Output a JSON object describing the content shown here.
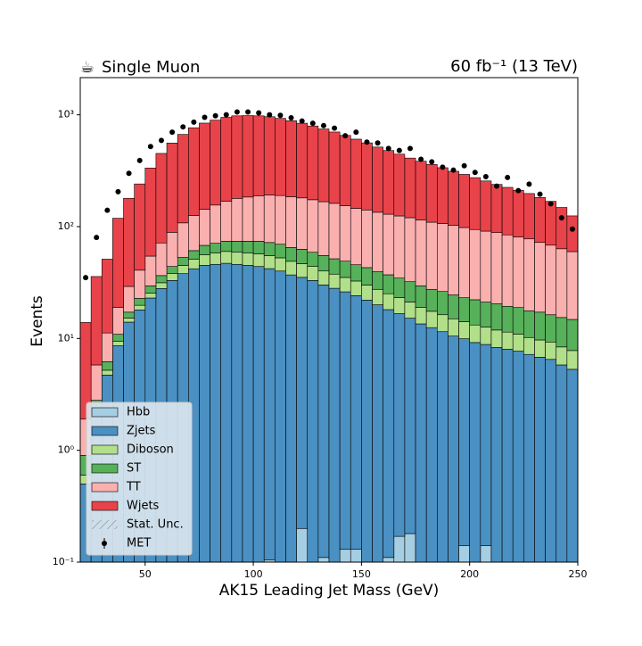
{
  "chart_data": {
    "type": "stacked-histogram",
    "title": "Single Muon",
    "subtitle": "60 fb⁻¹ (13 TeV)",
    "x_label": "AK15 Leading Jet Mass (GeV)",
    "y_label": "Events",
    "log_y": true,
    "xlim": [
      20,
      250
    ],
    "ylim": [
      0.1,
      2150
    ],
    "xticks": [
      50,
      100,
      150,
      200,
      250
    ],
    "yticks": [
      {
        "value": 0.1,
        "label": "10⁻¹"
      },
      {
        "value": 1,
        "label": "10⁰"
      },
      {
        "value": 10,
        "label": "10¹"
      },
      {
        "value": 100,
        "label": "10²"
      },
      {
        "value": 1000,
        "label": "10³"
      }
    ],
    "bins": [
      20,
      25,
      30,
      35,
      40,
      45,
      50,
      55,
      60,
      65,
      70,
      75,
      80,
      85,
      90,
      95,
      100,
      105,
      110,
      115,
      120,
      125,
      130,
      135,
      140,
      145,
      150,
      155,
      160,
      165,
      170,
      175,
      180,
      185,
      190,
      195,
      200,
      205,
      210,
      215,
      220,
      225,
      230,
      235,
      240,
      245,
      250
    ],
    "legend_position": "lower left",
    "uncertainty_label": "Stat. Unc.",
    "series": [
      {
        "name": "Hbb",
        "color": "#a6cee3",
        "values": [
          0,
          0,
          0,
          0,
          0,
          0,
          0,
          0,
          0,
          0,
          0,
          0,
          0,
          0,
          0,
          0,
          0,
          0.105,
          0.1,
          0,
          0.2,
          0,
          0.11,
          0.1,
          0.13,
          0.13,
          0,
          0,
          0.11,
          0.17,
          0.18,
          0,
          0,
          0,
          0,
          0.14,
          0,
          0.14,
          0,
          0,
          0,
          0,
          0,
          0,
          0,
          0
        ]
      },
      {
        "name": "Zjets",
        "color": "#4a90c2",
        "values": [
          0.5,
          2,
          4.7,
          8.6,
          14,
          18,
          23,
          28,
          33,
          38,
          42,
          45,
          46,
          47,
          46,
          45,
          44,
          42,
          40,
          37,
          35,
          33,
          30,
          28,
          26,
          24,
          22,
          20,
          18,
          16.5,
          15,
          13.5,
          12.5,
          11.5,
          10.5,
          9.8,
          9.2,
          8.7,
          8.3,
          8,
          7.7,
          7.2,
          6.8,
          6.5,
          5.8,
          5.3
        ]
      },
      {
        "name": "Diboson",
        "color": "#b2df8a",
        "values": [
          0.1,
          0.2,
          0.5,
          0.8,
          1.2,
          1.8,
          2.5,
          3.5,
          5,
          7,
          9,
          11,
          12,
          13,
          13,
          13,
          13,
          13,
          12.5,
          12,
          11.5,
          11,
          10,
          9.5,
          9,
          8.5,
          8,
          7.5,
          7,
          6.5,
          6,
          5.5,
          5,
          4.8,
          4.5,
          4.2,
          4,
          3.8,
          3.6,
          3.4,
          3.2,
          3,
          2.9,
          2.8,
          2.6,
          2.5
        ]
      },
      {
        "name": "ST",
        "color": "#57b05a",
        "values": [
          0.3,
          0.6,
          1,
          1.5,
          2,
          3,
          4,
          5,
          6,
          8,
          10,
          12,
          13,
          14,
          15,
          16,
          17,
          17,
          17,
          16,
          16,
          15,
          15,
          14,
          14,
          13,
          13,
          12,
          12,
          11.5,
          11,
          10.5,
          10,
          10,
          9.5,
          9,
          9,
          8.5,
          8.5,
          8,
          8,
          7.5,
          7.5,
          7,
          7,
          7
        ]
      },
      {
        "name": "TT",
        "color": "#fbb0b0",
        "values": [
          1,
          3,
          5,
          8,
          12,
          18,
          25,
          35,
          45,
          55,
          65,
          75,
          85,
          95,
          105,
          110,
          115,
          120,
          120,
          120,
          118,
          115,
          112,
          110,
          105,
          100,
          98,
          95,
          92,
          90,
          88,
          85,
          82,
          80,
          78,
          75,
          72,
          70,
          68,
          65,
          62,
          60,
          55,
          52,
          48,
          45
        ]
      },
      {
        "name": "Wjets",
        "color": "#e8434a",
        "values": [
          12,
          30,
          40,
          100,
          150,
          200,
          280,
          380,
          470,
          560,
          640,
          700,
          740,
          780,
          800,
          800,
          790,
          770,
          740,
          700,
          660,
          620,
          580,
          540,
          500,
          460,
          420,
          380,
          350,
          320,
          290,
          270,
          250,
          230,
          210,
          195,
          180,
          165,
          150,
          140,
          130,
          120,
          110,
          100,
          85,
          65
        ]
      }
    ],
    "data_series": {
      "name": "MET",
      "color": "#000000",
      "values": [
        35,
        80,
        140,
        205,
        300,
        390,
        520,
        590,
        700,
        780,
        860,
        950,
        980,
        1000,
        1060,
        1060,
        1040,
        1000,
        990,
        940,
        880,
        840,
        800,
        760,
        650,
        700,
        570,
        560,
        500,
        480,
        500,
        400,
        380,
        340,
        320,
        350,
        305,
        280,
        230,
        275,
        210,
        240,
        195,
        160,
        120,
        95
      ]
    }
  }
}
